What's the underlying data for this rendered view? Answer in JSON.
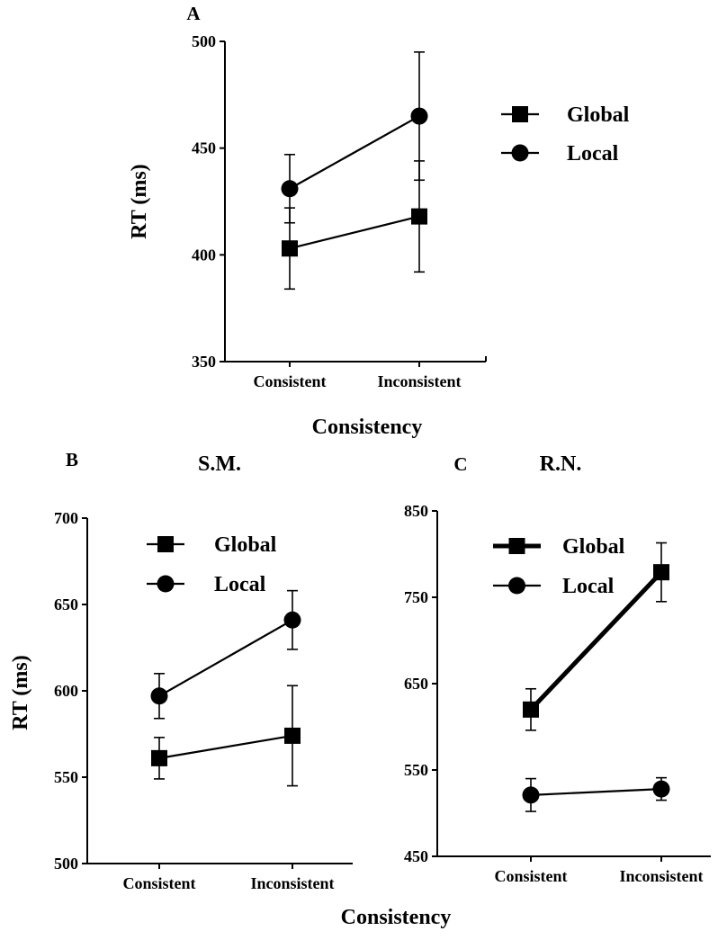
{
  "figure": {
    "xlabel_top": "Consistency",
    "xlabel_bottom": "Consistency"
  },
  "chart_data": [
    {
      "panel": "A",
      "type": "line",
      "title": "",
      "xlabel": "Consistency",
      "ylabel": "RT (ms)",
      "categories": [
        "Consistent",
        "Inconsistent"
      ],
      "ylim": [
        350,
        500
      ],
      "yticks": [
        350,
        400,
        450,
        500
      ],
      "legend_position": "right",
      "series": [
        {
          "name": "Global",
          "marker": "square",
          "values": [
            403,
            418
          ],
          "errors": [
            19,
            26
          ]
        },
        {
          "name": "Local",
          "marker": "circle",
          "values": [
            431,
            465
          ],
          "errors": [
            16,
            30
          ]
        }
      ]
    },
    {
      "panel": "B",
      "type": "line",
      "title": "S.M.",
      "xlabel": "Consistency",
      "ylabel": "RT (ms)",
      "categories": [
        "Consistent",
        "Inconsistent"
      ],
      "ylim": [
        500,
        700
      ],
      "yticks": [
        500,
        550,
        600,
        650,
        700
      ],
      "legend_position": "top-left",
      "series": [
        {
          "name": "Global",
          "marker": "square",
          "values": [
            561,
            574
          ],
          "errors": [
            12,
            29
          ]
        },
        {
          "name": "Local",
          "marker": "circle",
          "values": [
            597,
            641
          ],
          "errors": [
            13,
            17
          ]
        }
      ]
    },
    {
      "panel": "C",
      "type": "line",
      "title": "R.N.",
      "xlabel": "Consistency",
      "ylabel": "",
      "categories": [
        "Consistent",
        "Inconsistent"
      ],
      "ylim": [
        450,
        850
      ],
      "yticks": [
        450,
        550,
        650,
        750,
        850
      ],
      "legend_position": "top-left",
      "series": [
        {
          "name": "Global",
          "marker": "square",
          "thick": true,
          "values": [
            620,
            779
          ],
          "errors": [
            24,
            34
          ]
        },
        {
          "name": "Local",
          "marker": "circle",
          "thick": false,
          "values": [
            521,
            528
          ],
          "errors": [
            19,
            13
          ]
        }
      ]
    }
  ]
}
